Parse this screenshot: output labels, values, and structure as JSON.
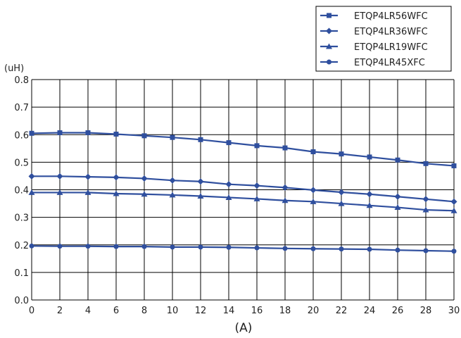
{
  "chart_data": {
    "type": "line",
    "title": "",
    "xlabel": "(A)",
    "ylabel": "(uH)",
    "x": [
      0,
      2,
      4,
      6,
      8,
      10,
      12,
      14,
      16,
      18,
      20,
      22,
      24,
      26,
      28,
      30
    ],
    "xlim": [
      0,
      30
    ],
    "ylim": [
      0.0,
      0.8
    ],
    "xticks": [
      0,
      2,
      4,
      6,
      8,
      10,
      12,
      14,
      16,
      18,
      20,
      22,
      24,
      26,
      28,
      30
    ],
    "yticks": [
      "0.0",
      "0.1",
      "0.2",
      "0.3",
      "0.4",
      "0.5",
      "0.6",
      "0.7",
      "0.8"
    ],
    "grid": true,
    "legend_position": "top-right",
    "line_color": "#2f4f9e",
    "series": [
      {
        "name": "ETQP4LR56WFC",
        "marker": "square",
        "values": [
          0.605,
          0.607,
          0.607,
          0.602,
          0.596,
          0.59,
          0.582,
          0.571,
          0.56,
          0.552,
          0.538,
          0.53,
          0.519,
          0.508,
          0.495,
          0.487
        ]
      },
      {
        "name": "ETQP4LR36WFC",
        "marker": "diamond",
        "values": [
          0.449,
          0.449,
          0.447,
          0.445,
          0.441,
          0.434,
          0.43,
          0.42,
          0.415,
          0.408,
          0.399,
          0.391,
          0.384,
          0.375,
          0.366,
          0.357
        ]
      },
      {
        "name": "ETQP4LR19WFC",
        "marker": "triangle",
        "values": [
          0.39,
          0.39,
          0.39,
          0.386,
          0.384,
          0.381,
          0.377,
          0.372,
          0.367,
          0.361,
          0.357,
          0.35,
          0.343,
          0.336,
          0.327,
          0.324
        ]
      },
      {
        "name": "ETQP4LR45XFC",
        "marker": "circle",
        "values": [
          0.196,
          0.195,
          0.195,
          0.194,
          0.194,
          0.192,
          0.192,
          0.191,
          0.189,
          0.187,
          0.186,
          0.185,
          0.184,
          0.181,
          0.179,
          0.177
        ]
      }
    ]
  }
}
